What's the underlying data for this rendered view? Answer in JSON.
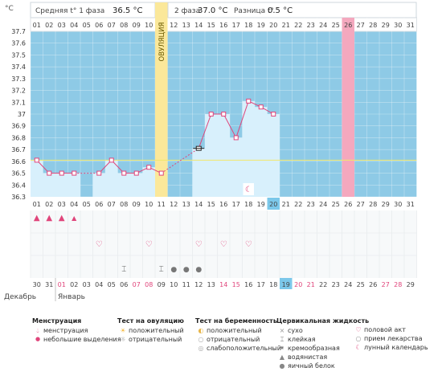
{
  "header": {
    "phase1_label": "Средняя t° 1 фаза",
    "phase1_value": "36.5 °C",
    "phase2_label": "2 фаза",
    "phase2_value": "37.0 °C",
    "diff_label": "Разница t°",
    "diff_value": "0.5 °C",
    "unit": "°C"
  },
  "ovulation_label": "ОВУЛЯЦИЯ",
  "chart_data": {
    "type": "line",
    "ylabel": "°C",
    "ylim": [
      36.3,
      37.7
    ],
    "yticks": [
      "36.3",
      "36.4",
      "36.5",
      "36.6",
      "36.7",
      "36.8",
      "36.9",
      "37",
      "37.1",
      "37.2",
      "37.3",
      "37.4",
      "37.5",
      "37.6",
      "37.7"
    ],
    "cycle_days": [
      "01",
      "02",
      "03",
      "04",
      "05",
      "06",
      "07",
      "08",
      "09",
      "10",
      "11",
      "12",
      "13",
      "14",
      "15",
      "16",
      "17",
      "18",
      "19",
      "20",
      "21",
      "22",
      "23",
      "24",
      "25",
      "26",
      "27",
      "28",
      "29",
      "30",
      "31"
    ],
    "top_days": [
      "01",
      "02",
      "03",
      "04",
      "05",
      "06",
      "07",
      "08",
      "09",
      "10",
      "11",
      "12",
      "13",
      "14",
      "15",
      "16",
      "17",
      "18",
      "19",
      "20"
    ],
    "temperatures": [
      36.61,
      36.5,
      36.5,
      36.5,
      null,
      36.5,
      36.61,
      36.5,
      36.5,
      36.55,
      36.5,
      null,
      null,
      36.71,
      37.0,
      37.0,
      36.8,
      37.11,
      37.06,
      37.0,
      null,
      null,
      null,
      null,
      null,
      null,
      null,
      null,
      null,
      null,
      null
    ],
    "coverline": 36.61,
    "ovulation_day": 11,
    "pink_day": 26,
    "current_day": 20
  },
  "calendar": {
    "dates": [
      "30",
      "31",
      "01",
      "02",
      "03",
      "04",
      "05",
      "06",
      "07",
      "08",
      "09",
      "10",
      "11",
      "12",
      "13",
      "14",
      "15",
      "16",
      "17",
      "18",
      "19",
      "20",
      "21",
      "22",
      "23",
      "24",
      "25",
      "26",
      "27",
      "28",
      "29"
    ],
    "red_dates": [
      2,
      8,
      9,
      15,
      16,
      21,
      22,
      28,
      29
    ],
    "current_index": 20,
    "month_prev": "Декабрь",
    "month_next": "Январь"
  },
  "markers": {
    "menstruation_days": [
      1,
      2,
      3,
      4
    ],
    "heart_days": [
      6,
      10,
      14,
      16,
      18
    ],
    "moon_day": 18,
    "sticky_days": [
      8,
      11
    ],
    "egg_white_days": [
      12,
      13,
      14
    ]
  },
  "legend": {
    "menstruation": {
      "title": "Менструация",
      "items": [
        "менструация",
        "небольшие выделения"
      ]
    },
    "ovulation_test": {
      "title": "Тест на овуляцию",
      "items": [
        "положительный",
        "отрицательный"
      ]
    },
    "pregnancy_test": {
      "title": "Тест на беременность",
      "items": [
        "положительный",
        "отрицательный",
        "слабоположительный"
      ]
    },
    "cervical": {
      "title": "Цервикальная жидкость",
      "items": [
        "сухо",
        "клейкая",
        "кремообразная",
        "водянистая",
        "яичный белок"
      ]
    },
    "other": {
      "items": [
        "половой акт",
        "прием лекарства",
        "лунный календарь"
      ]
    }
  },
  "colors": {
    "plot_bg": "#8ecae6",
    "fill": "#d8f0fc",
    "line": "#e0457b",
    "ovulation": "#fbe89a",
    "pink": "#f4a8be",
    "current": "#7cc8ea",
    "coverline": "#f2e76a"
  }
}
